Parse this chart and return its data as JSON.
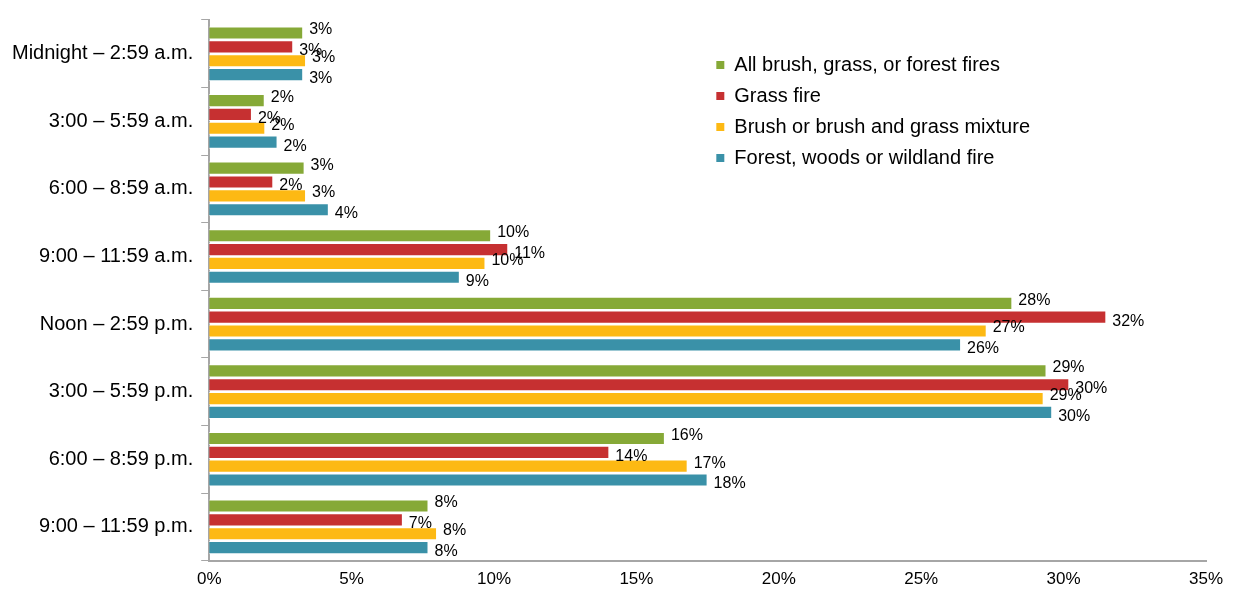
{
  "chart_data": {
    "type": "bar",
    "orientation": "horizontal",
    "categories": [
      "Midnight – 2:59 a.m.",
      "3:00 – 5:59 a.m.",
      "6:00 – 8:59 a.m.",
      "9:00 – 11:59 a.m.",
      "Noon – 2:59 p.m.",
      "3:00 – 5:59 p.m.",
      "6:00 – 8:59 p.m.",
      "9:00 – 11:59 p.m."
    ],
    "series": [
      {
        "name": "All brush, grass, or forest fires",
        "color": "#86a937",
        "values": [
          3.3,
          1.95,
          3.35,
          9.9,
          28.2,
          29.4,
          16.0,
          7.7
        ],
        "value_labels": [
          "3%",
          "2%",
          "3%",
          "10%",
          "28%",
          "29%",
          "16%",
          "8%"
        ]
      },
      {
        "name": "Grass fire",
        "color": "#c63031",
        "values": [
          2.95,
          1.5,
          2.25,
          10.5,
          31.5,
          30.2,
          14.05,
          6.8
        ],
        "value_labels": [
          "3%",
          "2%",
          "2%",
          "11%",
          "32%",
          "30%",
          "14%",
          "7%"
        ]
      },
      {
        "name": "Brush or brush and grass mixture",
        "color": "#fdb913",
        "values": [
          3.4,
          1.97,
          3.4,
          9.7,
          27.3,
          29.3,
          16.8,
          8.0
        ],
        "value_labels": [
          "3%",
          "2%",
          "3%",
          "10%",
          "27%",
          "29%",
          "17%",
          "8%"
        ]
      },
      {
        "name": "Forest, woods or wildland fire",
        "color": "#3a91a8",
        "values": [
          3.3,
          2.4,
          4.2,
          8.8,
          26.4,
          29.6,
          17.5,
          7.7
        ],
        "value_labels": [
          "3%",
          "2%",
          "4%",
          "9%",
          "26%",
          "30%",
          "18%",
          "8%"
        ]
      }
    ],
    "xlim": [
      0,
      35
    ],
    "xticks": [
      {
        "value": 0,
        "label": "0%"
      },
      {
        "value": 5,
        "label": "5%"
      },
      {
        "value": 10,
        "label": "10%"
      },
      {
        "value": 15,
        "label": "15%"
      },
      {
        "value": 20,
        "label": "20%"
      },
      {
        "value": 25,
        "label": "25%"
      },
      {
        "value": 30,
        "label": "30%"
      },
      {
        "value": 35,
        "label": "35%"
      }
    ],
    "grid": false,
    "legend": "top right"
  }
}
